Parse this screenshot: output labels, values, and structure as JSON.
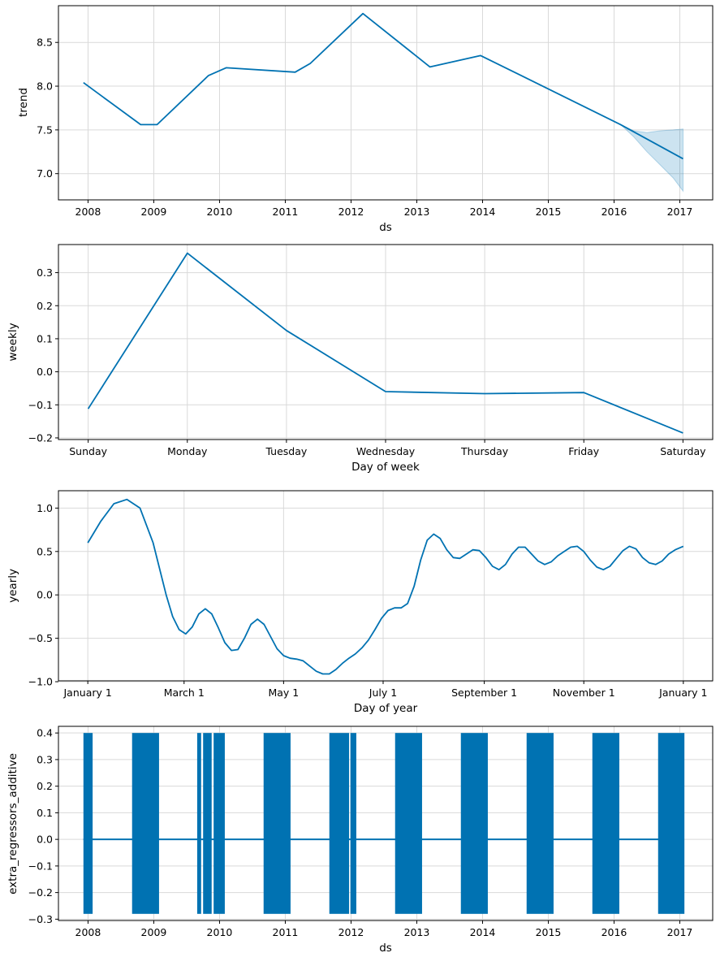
{
  "chart_data": [
    {
      "id": "trend",
      "type": "line",
      "xlabel": "ds",
      "ylabel": "trend",
      "xlim": [
        2007.55,
        2017.5
      ],
      "ylim": [
        6.7,
        8.92
      ],
      "xticks": [
        2008,
        2009,
        2010,
        2011,
        2012,
        2013,
        2014,
        2015,
        2016,
        2017
      ],
      "xtick_labels": [
        "2008",
        "2009",
        "2010",
        "2011",
        "2012",
        "2013",
        "2014",
        "2015",
        "2016",
        "2017"
      ],
      "yticks": [
        7.0,
        7.5,
        8.0,
        8.5
      ],
      "ytick_labels": [
        "7.0",
        "7.5",
        "8.0",
        "8.5"
      ],
      "grid": true,
      "series": [
        {
          "name": "trend",
          "x": [
            2007.93,
            2008.8,
            2009.05,
            2009.83,
            2010.1,
            2011.15,
            2011.38,
            2012.18,
            2013.2,
            2013.97,
            2016.1,
            2017.05
          ],
          "y": [
            8.04,
            7.56,
            7.56,
            8.12,
            8.21,
            8.16,
            8.26,
            8.83,
            8.22,
            8.35,
            7.56,
            7.17
          ]
        }
      ],
      "band": {
        "x": [
          2016.1,
          2016.3,
          2016.5,
          2016.7,
          2016.9,
          2017.05
        ],
        "upper": [
          7.56,
          7.49,
          7.47,
          7.49,
          7.5,
          7.51
        ],
        "lower": [
          7.56,
          7.42,
          7.25,
          7.1,
          6.95,
          6.8
        ]
      }
    },
    {
      "id": "weekly",
      "type": "line",
      "xlabel": "Day of week",
      "ylabel": "weekly",
      "xlim": [
        -0.3,
        6.3
      ],
      "ylim": [
        -0.205,
        0.385
      ],
      "xticks": [
        0,
        1,
        2,
        3,
        4,
        5,
        6
      ],
      "xtick_labels": [
        "Sunday",
        "Monday",
        "Tuesday",
        "Wednesday",
        "Thursday",
        "Friday",
        "Saturday"
      ],
      "yticks": [
        -0.2,
        -0.1,
        0.0,
        0.1,
        0.2,
        0.3
      ],
      "ytick_labels": [
        "−0.2",
        "−0.1",
        "0.0",
        "0.1",
        "0.2",
        "0.3"
      ],
      "grid": true,
      "series": [
        {
          "name": "weekly",
          "x": [
            0,
            1,
            2,
            3,
            4,
            5,
            6
          ],
          "y": [
            -0.112,
            0.359,
            0.125,
            -0.06,
            -0.066,
            -0.063,
            -0.185
          ]
        }
      ]
    },
    {
      "id": "yearly",
      "type": "line",
      "xlabel": "Day of year",
      "ylabel": "yearly",
      "xlim": [
        -18,
        383
      ],
      "ylim": [
        -0.99,
        1.2
      ],
      "xticks": [
        0,
        59,
        120,
        181,
        243,
        304,
        365
      ],
      "xtick_labels": [
        "January 1",
        "March 1",
        "May 1",
        "July 1",
        "September 1",
        "November 1",
        "January 1"
      ],
      "yticks": [
        -1.0,
        -0.5,
        0.0,
        0.5,
        1.0
      ],
      "ytick_labels": [
        "−1.0",
        "−0.5",
        "0.0",
        "0.5",
        "1.0"
      ],
      "grid": true,
      "series": [
        {
          "name": "yearly",
          "x": [
            0,
            8,
            16,
            24,
            32,
            40,
            48,
            52,
            56,
            60,
            64,
            68,
            72,
            76,
            80,
            84,
            88,
            92,
            96,
            100,
            104,
            108,
            112,
            116,
            120,
            124,
            128,
            132,
            136,
            140,
            144,
            148,
            152,
            156,
            160,
            164,
            168,
            172,
            176,
            180,
            184,
            188,
            192,
            196,
            200,
            204,
            208,
            212,
            216,
            220,
            224,
            228,
            232,
            236,
            240,
            244,
            248,
            252,
            256,
            260,
            264,
            268,
            272,
            276,
            280,
            284,
            288,
            292,
            296,
            300,
            304,
            308,
            312,
            316,
            320,
            324,
            328,
            332,
            336,
            340,
            344,
            348,
            352,
            356,
            360,
            365
          ],
          "y": [
            0.6,
            0.85,
            1.05,
            1.1,
            1.0,
            0.6,
            0.0,
            -0.25,
            -0.4,
            -0.45,
            -0.37,
            -0.22,
            -0.16,
            -0.22,
            -0.38,
            -0.55,
            -0.64,
            -0.63,
            -0.5,
            -0.34,
            -0.28,
            -0.34,
            -0.48,
            -0.62,
            -0.7,
            -0.73,
            -0.74,
            -0.76,
            -0.82,
            -0.88,
            -0.91,
            -0.91,
            -0.86,
            -0.79,
            -0.73,
            -0.68,
            -0.61,
            -0.52,
            -0.4,
            -0.27,
            -0.18,
            -0.15,
            -0.15,
            -0.1,
            0.1,
            0.4,
            0.63,
            0.7,
            0.65,
            0.52,
            0.43,
            0.42,
            0.47,
            0.52,
            0.51,
            0.43,
            0.33,
            0.29,
            0.35,
            0.47,
            0.55,
            0.55,
            0.47,
            0.39,
            0.35,
            0.38,
            0.45,
            0.5,
            0.55,
            0.56,
            0.5,
            0.4,
            0.32,
            0.29,
            0.33,
            0.42,
            0.51,
            0.56,
            0.53,
            0.43,
            0.37,
            0.35,
            0.39,
            0.47,
            0.52,
            0.56
          ]
        }
      ]
    },
    {
      "id": "extra_regressors_additive",
      "type": "line",
      "xlabel": "ds",
      "ylabel": "extra_regressors_additive",
      "xlim": [
        2007.55,
        2017.5
      ],
      "ylim": [
        -0.305,
        0.425
      ],
      "xticks": [
        2008,
        2009,
        2010,
        2011,
        2012,
        2013,
        2014,
        2015,
        2016,
        2017
      ],
      "xtick_labels": [
        "2008",
        "2009",
        "2010",
        "2011",
        "2012",
        "2013",
        "2014",
        "2015",
        "2016",
        "2017"
      ],
      "yticks": [
        -0.3,
        -0.2,
        -0.1,
        0.0,
        0.1,
        0.2,
        0.3,
        0.4
      ],
      "ytick_labels": [
        "−0.3",
        "−0.2",
        "−0.1",
        "0.0",
        "0.1",
        "0.2",
        "0.3",
        "0.4"
      ],
      "grid": true,
      "baseline": 0.0,
      "high": 0.4,
      "low": -0.28,
      "active_ranges": [
        [
          2007.93,
          2008.07
        ],
        [
          2008.67,
          2009.08
        ],
        [
          2009.66,
          2009.72
        ],
        [
          2009.75,
          2009.88
        ],
        [
          2009.91,
          2010.08
        ],
        [
          2010.67,
          2011.08
        ],
        [
          2011.67,
          2011.97
        ],
        [
          2011.99,
          2012.08
        ],
        [
          2012.67,
          2013.08
        ],
        [
          2013.67,
          2014.08
        ],
        [
          2014.67,
          2015.08
        ],
        [
          2015.67,
          2016.08
        ],
        [
          2016.67,
          2017.07
        ]
      ],
      "baseline_x": [
        2007.93,
        2017.05
      ]
    }
  ]
}
